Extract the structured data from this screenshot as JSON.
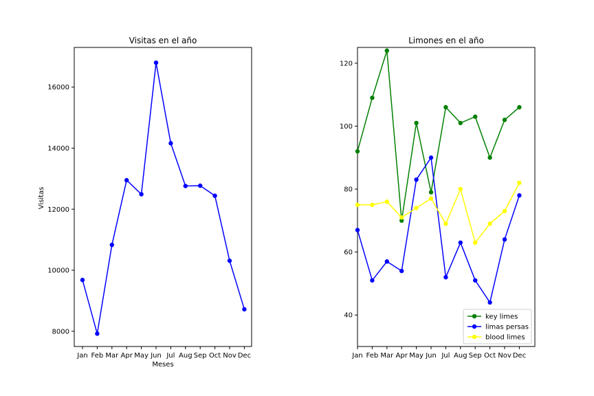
{
  "chart_data": [
    {
      "type": "line",
      "title": "Visitas en el año",
      "xlabel": "Meses",
      "ylabel": "Visitas",
      "categories": [
        "Jan",
        "Feb",
        "Mar",
        "Apr",
        "May",
        "Jun",
        "Jul",
        "Aug",
        "Sep",
        "Oct",
        "Nov",
        "Dec"
      ],
      "ylim": [
        7500,
        17300
      ],
      "yticks": [
        8000,
        10000,
        12000,
        14000,
        16000
      ],
      "legend": "none",
      "grid": false,
      "series": [
        {
          "color": "#0000ff",
          "marker": "circle",
          "values": [
            9680,
            7920,
            10830,
            12950,
            12490,
            16800,
            14160,
            12760,
            12770,
            12440,
            10310,
            8720
          ]
        }
      ]
    },
    {
      "type": "line",
      "title": "Limones en el año",
      "xlabel": "",
      "ylabel": "",
      "categories": [
        "Jan",
        "Feb",
        "Mar",
        "Apr",
        "May",
        "Jun",
        "Jul",
        "Aug",
        "Sep",
        "Oct",
        "Nov",
        "Dec"
      ],
      "xlim_extra_right": 1,
      "ylim": [
        30,
        125
      ],
      "yticks": [
        40,
        60,
        80,
        100,
        120
      ],
      "legend": "bottom-right",
      "grid": false,
      "series": [
        {
          "name": "key limes",
          "color": "#008000",
          "marker": "circle",
          "values": [
            92,
            109,
            124,
            70,
            101,
            79,
            106,
            101,
            103,
            90,
            102,
            106
          ]
        },
        {
          "name": "limas persas",
          "color": "#0000ff",
          "marker": "circle",
          "values": [
            67,
            51,
            57,
            54,
            83,
            90,
            52,
            63,
            51,
            44,
            64,
            78
          ]
        },
        {
          "name": "blood limes",
          "color": "#ffff00",
          "marker": "circle",
          "values": [
            75,
            75,
            76,
            71,
            74,
            77,
            69,
            80,
            63,
            69,
            73,
            82
          ]
        }
      ]
    }
  ]
}
